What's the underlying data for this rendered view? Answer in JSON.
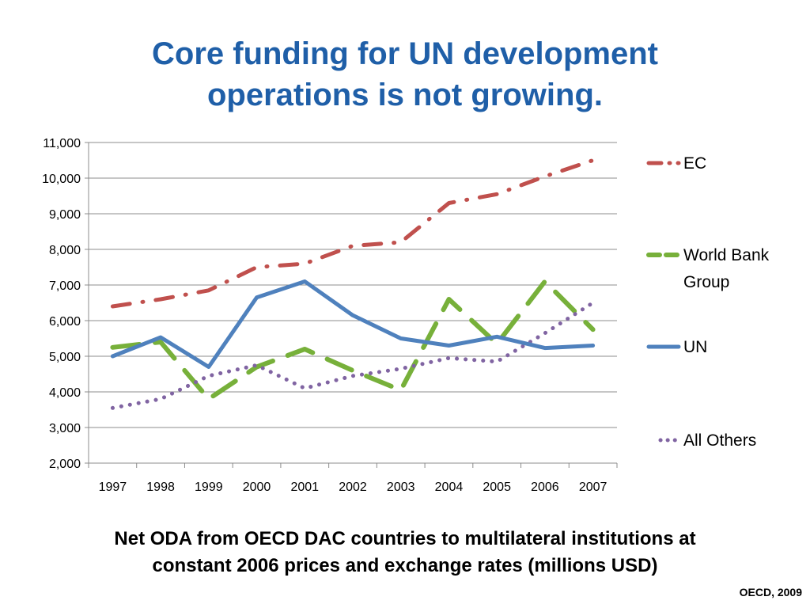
{
  "slide": {
    "title_line1": "Core funding for UN development",
    "title_line2": "operations is not growing.",
    "caption_line1": "Net ODA from OECD DAC countries to multilateral institutions at",
    "caption_line2": "constant 2006 prices and exchange rates (millions USD)",
    "credit": "OECD, 2009"
  },
  "chart_data": {
    "type": "line",
    "title": "",
    "xlabel": "",
    "ylabel": "",
    "ylim": [
      2000,
      11000
    ],
    "grid": true,
    "legend_placement": "right",
    "x": [
      "1997",
      "1998",
      "1999",
      "2000",
      "2001",
      "2002",
      "2003",
      "2004",
      "2005",
      "2006",
      "2007"
    ],
    "y_ticks": [
      "2,000",
      "3,000",
      "4,000",
      "5,000",
      "6,000",
      "7,000",
      "8,000",
      "9,000",
      "10,000",
      "11,000"
    ],
    "y_tick_values": [
      2000,
      3000,
      4000,
      5000,
      6000,
      7000,
      8000,
      9000,
      10000,
      11000
    ],
    "series": [
      {
        "name": "EC",
        "color": "#c0504d",
        "dash": "dash-dot",
        "values": [
          6400,
          6600,
          6850,
          7500,
          7600,
          8100,
          8200,
          9300,
          9550,
          10050,
          10500
        ]
      },
      {
        "name": "World Bank Group",
        "name_lines": [
          "World Bank",
          "Group"
        ],
        "color": "#77b03a",
        "dash": "long-dash",
        "values": [
          5250,
          5400,
          3800,
          4700,
          5200,
          4600,
          4050,
          6600,
          5350,
          7100,
          5750
        ]
      },
      {
        "name": "UN",
        "color": "#4f81bd",
        "dash": "solid",
        "values": [
          5000,
          5530,
          4700,
          6650,
          7100,
          6150,
          5500,
          5300,
          5550,
          5230,
          5300
        ]
      },
      {
        "name": "All Others",
        "color": "#8064a2",
        "dash": "dot",
        "values": [
          3550,
          3800,
          4450,
          4750,
          4100,
          4450,
          4650,
          4950,
          4850,
          5650,
          6500
        ]
      }
    ]
  }
}
